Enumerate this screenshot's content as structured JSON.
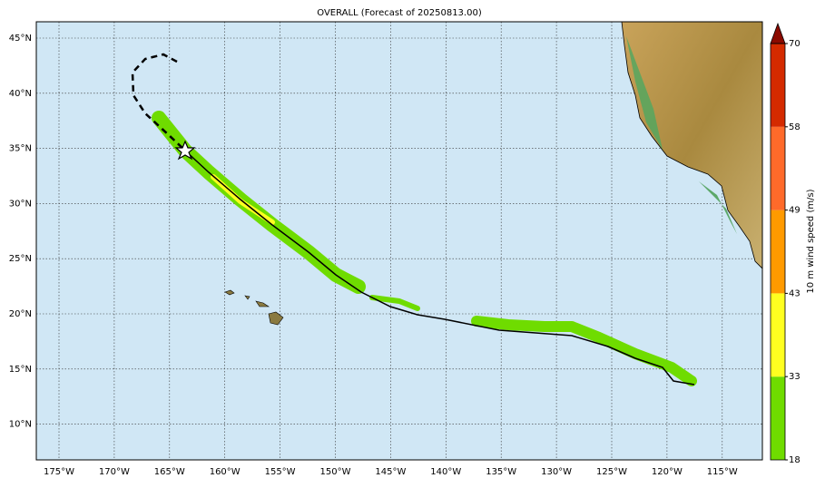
{
  "title": "OVERALL (Forecast of 20250813.00)",
  "lon_labels": [
    "175°W",
    "170°W",
    "165°W",
    "160°W",
    "155°W",
    "150°W",
    "145°W",
    "140°W",
    "135°W",
    "130°W",
    "125°W",
    "120°W",
    "115°W"
  ],
  "lat_labels": [
    "45°N",
    "40°N",
    "35°N",
    "30°N",
    "25°N",
    "20°N",
    "15°N",
    "10°N"
  ],
  "colorbar": {
    "label": "10 m wind speed (m/s)",
    "ticks": [
      18,
      33,
      43,
      49,
      58,
      70
    ],
    "colors": [
      "#6fdc00",
      "#ffff20",
      "#ff9a00",
      "#ff6a2a",
      "#d42a00"
    ],
    "extend_color": "#8b0a00"
  }
}
